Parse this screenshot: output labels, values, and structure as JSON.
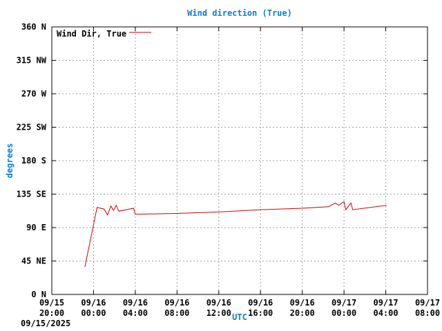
{
  "chart_data": {
    "type": "line",
    "title": "Wind direction (True)",
    "xlabel": "UTC",
    "ylabel": "degrees",
    "date_label": "09/15/2025",
    "ylim": [
      0,
      360
    ],
    "y_ticks": [
      {
        "value": 0,
        "label": "0 N"
      },
      {
        "value": 45,
        "label": "45 NE"
      },
      {
        "value": 90,
        "label": "90 E"
      },
      {
        "value": 135,
        "label": "135 SE"
      },
      {
        "value": 180,
        "label": "180 S"
      },
      {
        "value": 225,
        "label": "225 SW"
      },
      {
        "value": 270,
        "label": "270 W"
      },
      {
        "value": 315,
        "label": "315 NW"
      },
      {
        "value": 360,
        "label": "360 N"
      }
    ],
    "xlim": [
      "09/15 20:00",
      "09/17 08:00"
    ],
    "x_ticks": [
      {
        "value": "09/15 20:00",
        "line1": "09/15",
        "line2": "20:00"
      },
      {
        "value": "09/16 00:00",
        "line1": "09/16",
        "line2": "00:00"
      },
      {
        "value": "09/16 04:00",
        "line1": "09/16",
        "line2": "04:00"
      },
      {
        "value": "09/16 08:00",
        "line1": "09/16",
        "line2": "08:00"
      },
      {
        "value": "09/16 12:00",
        "line1": "09/16",
        "line2": "12:00"
      },
      {
        "value": "09/16 16:00",
        "line1": "09/16",
        "line2": "16:00"
      },
      {
        "value": "09/16 20:00",
        "line1": "09/16",
        "line2": "20:00"
      },
      {
        "value": "09/17 00:00",
        "line1": "09/17",
        "line2": "00:00"
      },
      {
        "value": "09/17 04:00",
        "line1": "09/17",
        "line2": "04:00"
      },
      {
        "value": "09/17 08:00",
        "line1": "09/17",
        "line2": "08:00"
      }
    ],
    "grid": true,
    "legend_position": "top-left",
    "series": [
      {
        "name": "Wind Dir, True",
        "color": "#cc0000",
        "points": [
          [
            "09/15 23:10",
            37
          ],
          [
            "09/16 00:20",
            117
          ],
          [
            "09/16 01:00",
            115
          ],
          [
            "09/16 01:20",
            107
          ],
          [
            "09/16 01:40",
            119
          ],
          [
            "09/16 01:55",
            113
          ],
          [
            "09/16 02:10",
            120
          ],
          [
            "09/16 02:25",
            112
          ],
          [
            "09/16 03:50",
            116
          ],
          [
            "09/16 04:00",
            108
          ],
          [
            "09/16 08:00",
            109
          ],
          [
            "09/16 12:00",
            111
          ],
          [
            "09/16 16:00",
            114
          ],
          [
            "09/16 20:00",
            116
          ],
          [
            "09/16 22:30",
            118
          ],
          [
            "09/16 23:10",
            123
          ],
          [
            "09/16 23:30",
            120
          ],
          [
            "09/17 00:00",
            125
          ],
          [
            "09/17 00:10",
            114
          ],
          [
            "09/17 00:40",
            123
          ],
          [
            "09/17 00:50",
            114
          ],
          [
            "09/17 04:05",
            120
          ]
        ]
      }
    ]
  }
}
